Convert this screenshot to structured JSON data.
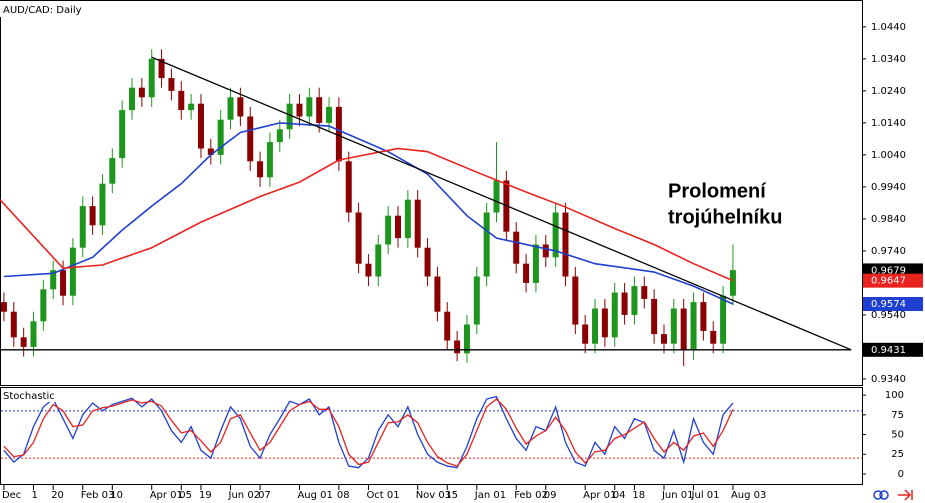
{
  "chart_data": [
    {
      "type": "candlestick",
      "title": "AUD/CAD: Daily",
      "categories": [
        "Dec",
        null,
        null,
        "1",
        null,
        "20",
        null,
        null,
        "Feb 03",
        null,
        null,
        "10",
        null,
        null,
        null,
        "Apr 01",
        null,
        null,
        "05",
        null,
        "19",
        null,
        null,
        "Jun 02",
        null,
        null,
        "07",
        null,
        null,
        null,
        "Aug 01",
        null,
        null,
        null,
        "08",
        null,
        null,
        "Oct 01",
        null,
        null,
        null,
        null,
        "Nov 03",
        null,
        null,
        "15",
        null,
        null,
        "Jan 01",
        null,
        null,
        null,
        "Feb 02",
        null,
        null,
        "09",
        null,
        null,
        null,
        "Apr 01",
        null,
        null,
        "04",
        null,
        "18",
        null,
        null,
        "Jun 01",
        null,
        null,
        "Jul 01",
        null,
        null,
        null,
        "Aug 03"
      ],
      "candles": [
        [
          0.958,
          0.961,
          0.952,
          0.955
        ],
        [
          0.955,
          0.958,
          0.944,
          0.947
        ],
        [
          0.947,
          0.95,
          0.941,
          0.944
        ],
        [
          0.944,
          0.955,
          0.941,
          0.952
        ],
        [
          0.952,
          0.965,
          0.949,
          0.962
        ],
        [
          0.962,
          0.971,
          0.959,
          0.968
        ],
        [
          0.968,
          0.971,
          0.957,
          0.96
        ],
        [
          0.96,
          0.978,
          0.957,
          0.975
        ],
        [
          0.975,
          0.991,
          0.972,
          0.988
        ],
        [
          0.988,
          0.991,
          0.979,
          0.982
        ],
        [
          0.982,
          0.998,
          0.979,
          0.995
        ],
        [
          0.995,
          1.006,
          0.992,
          1.003
        ],
        [
          1.003,
          1.021,
          1.0,
          1.018
        ],
        [
          1.018,
          1.028,
          1.015,
          1.025
        ],
        [
          1.025,
          1.028,
          1.019,
          1.022
        ],
        [
          1.022,
          1.037,
          1.019,
          1.034
        ],
        [
          1.034,
          1.037,
          1.025,
          1.028
        ],
        [
          1.028,
          1.031,
          1.021,
          1.024
        ],
        [
          1.024,
          1.027,
          1.015,
          1.018
        ],
        [
          1.018,
          1.023,
          1.015,
          1.02
        ],
        [
          1.02,
          1.023,
          1.003,
          1.006
        ],
        [
          1.006,
          1.009,
          1.001,
          1.004
        ],
        [
          1.004,
          1.018,
          1.001,
          1.015
        ],
        [
          1.015,
          1.025,
          1.012,
          1.022
        ],
        [
          1.022,
          1.025,
          1.013,
          1.016
        ],
        [
          1.016,
          1.019,
          0.999,
          1.002
        ],
        [
          1.002,
          1.005,
          0.994,
          0.997
        ],
        [
          0.997,
          1.011,
          0.994,
          1.008
        ],
        [
          1.008,
          1.015,
          1.005,
          1.012
        ],
        [
          1.012,
          1.023,
          1.009,
          1.02
        ],
        [
          1.02,
          1.023,
          1.013,
          1.016
        ],
        [
          1.016,
          1.025,
          1.013,
          1.022
        ],
        [
          1.022,
          1.025,
          1.011,
          1.014
        ],
        [
          1.014,
          1.022,
          1.011,
          1.019
        ],
        [
          1.019,
          1.022,
          0.999,
          1.002
        ],
        [
          1.002,
          1.005,
          0.983,
          0.986
        ],
        [
          0.986,
          0.989,
          0.967,
          0.97
        ],
        [
          0.97,
          0.973,
          0.963,
          0.966
        ],
        [
          0.966,
          0.979,
          0.963,
          0.976
        ],
        [
          0.976,
          0.988,
          0.973,
          0.985
        ],
        [
          0.985,
          0.988,
          0.975,
          0.978
        ],
        [
          0.978,
          0.993,
          0.975,
          0.99
        ],
        [
          0.99,
          0.993,
          0.972,
          0.975
        ],
        [
          0.975,
          0.978,
          0.963,
          0.966
        ],
        [
          0.966,
          0.969,
          0.952,
          0.955
        ],
        [
          0.955,
          0.958,
          0.943,
          0.946
        ],
        [
          0.946,
          0.949,
          0.9395,
          0.942
        ],
        [
          0.942,
          0.954,
          0.939,
          0.951
        ],
        [
          0.951,
          0.969,
          0.948,
          0.966
        ],
        [
          0.966,
          0.989,
          0.963,
          0.986
        ],
        [
          0.986,
          1.008,
          0.983,
          0.996
        ],
        [
          0.996,
          0.999,
          0.977,
          0.98
        ],
        [
          0.98,
          0.983,
          0.967,
          0.97
        ],
        [
          0.97,
          0.973,
          0.961,
          0.964
        ],
        [
          0.964,
          0.979,
          0.961,
          0.976
        ],
        [
          0.976,
          0.979,
          0.969,
          0.972
        ],
        [
          0.972,
          0.989,
          0.969,
          0.986
        ],
        [
          0.986,
          0.989,
          0.963,
          0.966
        ],
        [
          0.966,
          0.969,
          0.948,
          0.951
        ],
        [
          0.951,
          0.954,
          0.942,
          0.945
        ],
        [
          0.945,
          0.959,
          0.942,
          0.956
        ],
        [
          0.956,
          0.959,
          0.944,
          0.947
        ],
        [
          0.947,
          0.964,
          0.944,
          0.961
        ],
        [
          0.961,
          0.964,
          0.951,
          0.954
        ],
        [
          0.954,
          0.966,
          0.951,
          0.963
        ],
        [
          0.963,
          0.966,
          0.956,
          0.959
        ],
        [
          0.959,
          0.962,
          0.945,
          0.948
        ],
        [
          0.948,
          0.951,
          0.942,
          0.945
        ],
        [
          0.945,
          0.959,
          0.942,
          0.956
        ],
        [
          0.956,
          0.959,
          0.938,
          0.943
        ],
        [
          0.943,
          0.961,
          0.94,
          0.958
        ],
        [
          0.958,
          0.961,
          0.946,
          0.949
        ],
        [
          0.949,
          0.952,
          0.942,
          0.945
        ],
        [
          0.945,
          0.963,
          0.942,
          0.96
        ],
        [
          0.96,
          0.976,
          0.957,
          0.968
        ]
      ],
      "up_color": "#1e961e",
      "down_color": "#8b0000",
      "series": [
        {
          "color": "#1f3fd0",
          "x": [
            0,
            5,
            9,
            12,
            15,
            18,
            21,
            24,
            28,
            33,
            39,
            43,
            47,
            50,
            56,
            60,
            66,
            70,
            74
          ],
          "values": [
            0.966,
            0.967,
            0.972,
            0.9805,
            0.988,
            0.995,
            1.004,
            1.011,
            1.014,
            1.013,
            1.005,
            0.998,
            0.985,
            0.978,
            0.974,
            0.97,
            0.9674,
            0.963,
            0.9574
          ]
        },
        {
          "color": "#e8231e",
          "x": [
            -0.4,
            6,
            10,
            15,
            20,
            26,
            30,
            34,
            40,
            43,
            48,
            53,
            57,
            62,
            66,
            70,
            74
          ],
          "values": [
            0.99,
            0.9686,
            0.9696,
            0.975,
            0.983,
            0.991,
            0.9955,
            1.0024,
            1.006,
            1.005,
            0.9986,
            0.9924,
            0.9877,
            0.981,
            0.976,
            0.97,
            0.9647
          ]
        }
      ],
      "lines": [
        {
          "color": "#000000",
          "x": [
            15,
            86
          ],
          "values": [
            1.0345,
            0.9431
          ]
        },
        {
          "color": "#000000",
          "x": [
            -0.4,
            86
          ],
          "values": [
            0.9431,
            0.9431
          ]
        }
      ],
      "annotation": [
        "Prolomení",
        "trojúhelníku"
      ],
      "price_markers": [
        {
          "value": 0.9679,
          "color": "#000000"
        },
        {
          "value": 0.9647,
          "color": "#e8231e"
        },
        {
          "value": 0.9574,
          "color": "#1f3fd0"
        },
        {
          "value": 0.9431,
          "color": "#000000"
        }
      ],
      "xlim": [
        -0.4,
        87.1
      ],
      "ylim": [
        0.9321,
        1.0524
      ],
      "yticks": [
        {
          "value": 1.044,
          "label": "1.0440"
        },
        {
          "value": 1.034,
          "label": "1.0340"
        },
        {
          "value": 1.024,
          "label": "1.0240"
        },
        {
          "value": 1.014,
          "label": "1.0140"
        },
        {
          "value": 1.004,
          "label": "1.0040"
        },
        {
          "value": 0.994,
          "label": "0.9940"
        },
        {
          "value": 0.984,
          "label": "0.9840"
        },
        {
          "value": 0.974,
          "label": "0.9740"
        },
        {
          "value": 0.964,
          "label": "0.9640"
        },
        {
          "value": 0.954,
          "label": "0.9540"
        },
        {
          "value": 0.944,
          "label": "0.9440"
        },
        {
          "value": 0.934,
          "label": "0.9340"
        }
      ]
    },
    {
      "type": "line",
      "title": "Stochastic",
      "series": [
        {
          "color": "#1f3fd0",
          "values": [
            30,
            15,
            25,
            60,
            85,
            95,
            70,
            45,
            75,
            90,
            80,
            88,
            92,
            96,
            85,
            95,
            80,
            55,
            40,
            60,
            30,
            20,
            55,
            85,
            70,
            35,
            20,
            50,
            70,
            92,
            88,
            95,
            75,
            85,
            40,
            10,
            8,
            20,
            55,
            75,
            60,
            85,
            50,
            25,
            15,
            10,
            8,
            35,
            70,
            95,
            98,
            70,
            45,
            30,
            60,
            55,
            85,
            40,
            15,
            10,
            40,
            25,
            60,
            45,
            70,
            65,
            30,
            20,
            55,
            15,
            70,
            40,
            25,
            75,
            90
          ]
        },
        {
          "color": "#e8231e",
          "values": [
            35,
            22,
            24,
            40,
            70,
            88,
            80,
            60,
            62,
            80,
            84,
            86,
            90,
            94,
            90,
            92,
            86,
            68,
            52,
            55,
            42,
            28,
            40,
            70,
            75,
            52,
            30,
            40,
            60,
            80,
            88,
            92,
            82,
            82,
            60,
            25,
            12,
            15,
            40,
            65,
            66,
            75,
            65,
            40,
            22,
            14,
            10,
            25,
            55,
            85,
            95,
            82,
            58,
            38,
            48,
            55,
            72,
            55,
            28,
            14,
            28,
            30,
            45,
            50,
            58,
            66,
            45,
            28,
            40,
            30,
            48,
            52,
            35,
            55,
            82
          ]
        }
      ],
      "levels": [
        {
          "value": 20,
          "color": "#e8231e"
        },
        {
          "value": 80,
          "color": "#1f3fd0"
        }
      ],
      "ylim": [
        -14,
        109
      ],
      "yticks": [
        0,
        25,
        50,
        75,
        100
      ]
    }
  ]
}
